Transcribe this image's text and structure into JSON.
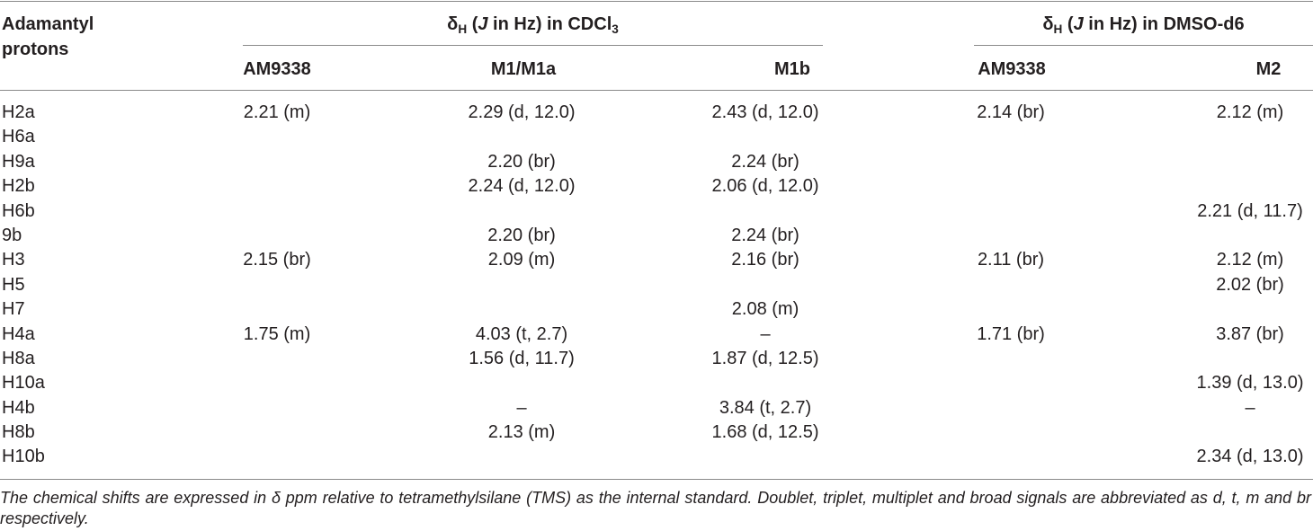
{
  "table": {
    "stub_header": "Adamantyl protons",
    "groups": [
      {
        "prefix": "δ",
        "prefix_sub": "H",
        "open": " (",
        "italic": "J",
        "text": " in Hz) in CDCl",
        "text_sub": "3"
      },
      {
        "prefix": "δ",
        "prefix_sub": "H",
        "open": " (",
        "italic": "J",
        "text": " in Hz) in DMSO-d6"
      }
    ],
    "columns": [
      "AM9338",
      "M1/M1a",
      "M1b",
      "AM9338",
      "M2"
    ],
    "rows": [
      {
        "proton": "H2a",
        "values": [
          "2.21 (m)",
          "2.29 (d, 12.0)",
          "2.43 (d, 12.0)",
          "2.14 (br)",
          "2.12 (m)"
        ]
      },
      {
        "proton": "H6a",
        "values": [
          "",
          "",
          "",
          "",
          ""
        ]
      },
      {
        "proton": "H9a",
        "values": [
          "",
          "2.20 (br)",
          "2.24 (br)",
          "",
          ""
        ]
      },
      {
        "proton": "H2b",
        "values": [
          "",
          "2.24 (d, 12.0)",
          "2.06 (d, 12.0)",
          "",
          ""
        ]
      },
      {
        "proton": "H6b",
        "values": [
          "",
          "",
          "",
          "",
          "2.21 (d, 11.7)"
        ]
      },
      {
        "proton": "9b",
        "values": [
          "",
          "2.20 (br)",
          "2.24 (br)",
          "",
          ""
        ]
      },
      {
        "proton": "H3",
        "values": [
          "2.15 (br)",
          "2.09 (m)",
          "2.16 (br)",
          "2.11 (br)",
          "2.12 (m)"
        ]
      },
      {
        "proton": "H5",
        "values": [
          "",
          "",
          "",
          "",
          "2.02 (br)"
        ]
      },
      {
        "proton": "H7",
        "values": [
          "",
          "",
          "2.08 (m)",
          "",
          ""
        ]
      },
      {
        "proton": "H4a",
        "values": [
          "1.75 (m)",
          "4.03 (t, 2.7)",
          "–",
          "1.71 (br)",
          "3.87 (br)"
        ]
      },
      {
        "proton": "H8a",
        "values": [
          "",
          "1.56 (d, 11.7)",
          "1.87 (d, 12.5)",
          "",
          ""
        ]
      },
      {
        "proton": "H10a",
        "values": [
          "",
          "",
          "",
          "",
          "1.39 (d, 13.0)"
        ]
      },
      {
        "proton": "H4b",
        "values": [
          "",
          "–",
          "3.84 (t, 2.7)",
          "",
          "–"
        ]
      },
      {
        "proton": "H8b",
        "values": [
          "",
          "2.13 (m)",
          "1.68 (d, 12.5)",
          "",
          ""
        ]
      },
      {
        "proton": "H10b",
        "values": [
          "",
          "",
          "",
          "",
          "2.34 (d, 13.0)"
        ]
      }
    ],
    "footnote": "The chemical shifts are expressed in δ ppm relative to tetramethylsilane (TMS) as the internal standard. Doublet, triplet, multiplet and broad signals are abbreviated as d, t, m and br respectively."
  },
  "colors": {
    "text": "#231f20",
    "rule": "#8a8a8a",
    "background": "#ffffff"
  }
}
